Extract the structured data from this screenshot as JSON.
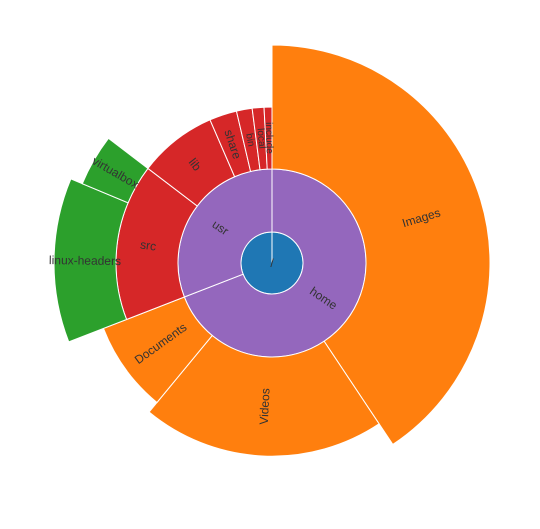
{
  "chart_data": {
    "type": "sunburst",
    "root": {
      "name": "/",
      "children": [
        {
          "name": "home",
          "children": [
            {
              "name": "Images",
              "value": 100,
              "radius": 1.0
            },
            {
              "name": "Videos",
              "value": 50,
              "radius": 0.8
            },
            {
              "name": "Documents",
              "value": 20,
              "radius": 0.7
            }
          ]
        },
        {
          "name": "usr",
          "children": [
            {
              "name": "src",
              "children": [
                {
                  "name": "linux-headers",
                  "value": 30,
                  "radius": 1.0
                },
                {
                  "name": "virtualbox",
                  "value": 10,
                  "radius": 0.8
                }
              ]
            },
            {
              "name": "lib",
              "value": 20
            },
            {
              "name": "share",
              "value": 7
            },
            {
              "name": "bin",
              "value": 4
            },
            {
              "name": "local",
              "value": 3
            },
            {
              "name": "include",
              "value": 2
            }
          ]
        }
      ]
    },
    "colors": {
      "/": "#1f77b4",
      "home": "#9467bd",
      "usr": "#9467bd",
      "home_children": "#ff7f0e",
      "src": "#d62728",
      "usr_children": "#d62728",
      "src_children": "#2ca02c"
    }
  }
}
